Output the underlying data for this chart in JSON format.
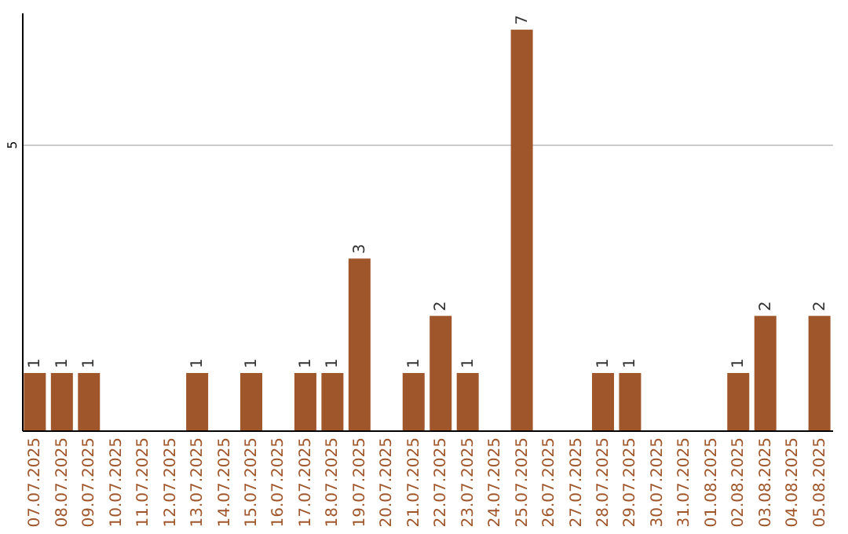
{
  "chart_data": {
    "type": "bar",
    "categories": [
      "07.07.2025",
      "08.07.2025",
      "09.07.2025",
      "10.07.2025",
      "11.07.2025",
      "12.07.2025",
      "13.07.2025",
      "14.07.2025",
      "15.07.2025",
      "16.07.2025",
      "17.07.2025",
      "18.07.2025",
      "19.07.2025",
      "20.07.2025",
      "21.07.2025",
      "22.07.2025",
      "23.07.2025",
      "24.07.2025",
      "25.07.2025",
      "26.07.2025",
      "27.07.2025",
      "28.07.2025",
      "29.07.2025",
      "30.07.2025",
      "31.07.2025",
      "01.08.2025",
      "02.08.2025",
      "03.08.2025",
      "04.08.2025",
      "05.08.2025"
    ],
    "values": [
      1,
      1,
      1,
      0,
      0,
      0,
      1,
      0,
      1,
      0,
      1,
      1,
      3,
      0,
      1,
      2,
      1,
      0,
      7,
      0,
      0,
      1,
      1,
      0,
      0,
      0,
      1,
      2,
      0,
      2
    ],
    "value_labels": [
      "1",
      "1",
      "1",
      null,
      null,
      null,
      "1",
      null,
      "1",
      null,
      "1",
      "1",
      "3",
      null,
      "1",
      "2",
      "1",
      null,
      "7",
      null,
      null,
      "1",
      "1",
      null,
      null,
      null,
      "1",
      "2",
      null,
      "2"
    ],
    "color": "#a0562b",
    "ylim": [
      0,
      7.3
    ],
    "yticks": [
      5
    ],
    "grid": "y"
  }
}
